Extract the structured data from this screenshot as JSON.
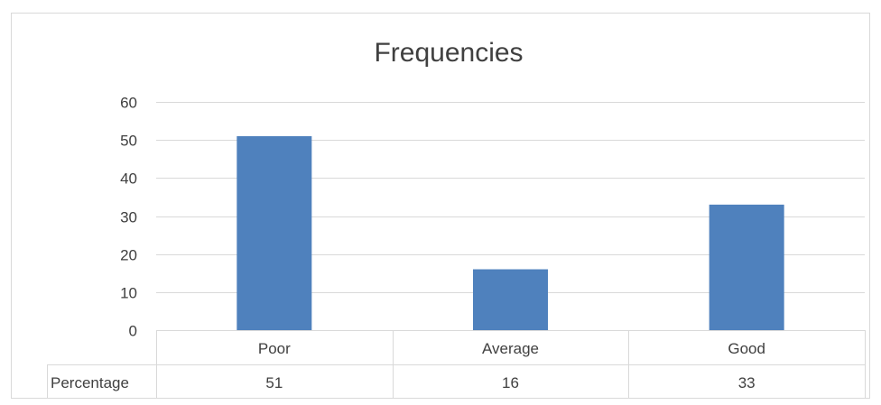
{
  "chart_data": {
    "type": "bar",
    "title": "Frequencies",
    "categories": [
      "Poor",
      "Average",
      "Good"
    ],
    "series": [
      {
        "name": "Percentage",
        "values": [
          51,
          16,
          33
        ]
      }
    ],
    "ylim": [
      0,
      60
    ],
    "yticks": [
      0,
      10,
      20,
      30,
      40,
      50,
      60
    ],
    "grid": true,
    "legend": "data-table-below",
    "colors": {
      "bar": "#4f81bd",
      "grid": "#d9d9d9",
      "border": "#d9d9d9",
      "text": "#404040"
    }
  }
}
